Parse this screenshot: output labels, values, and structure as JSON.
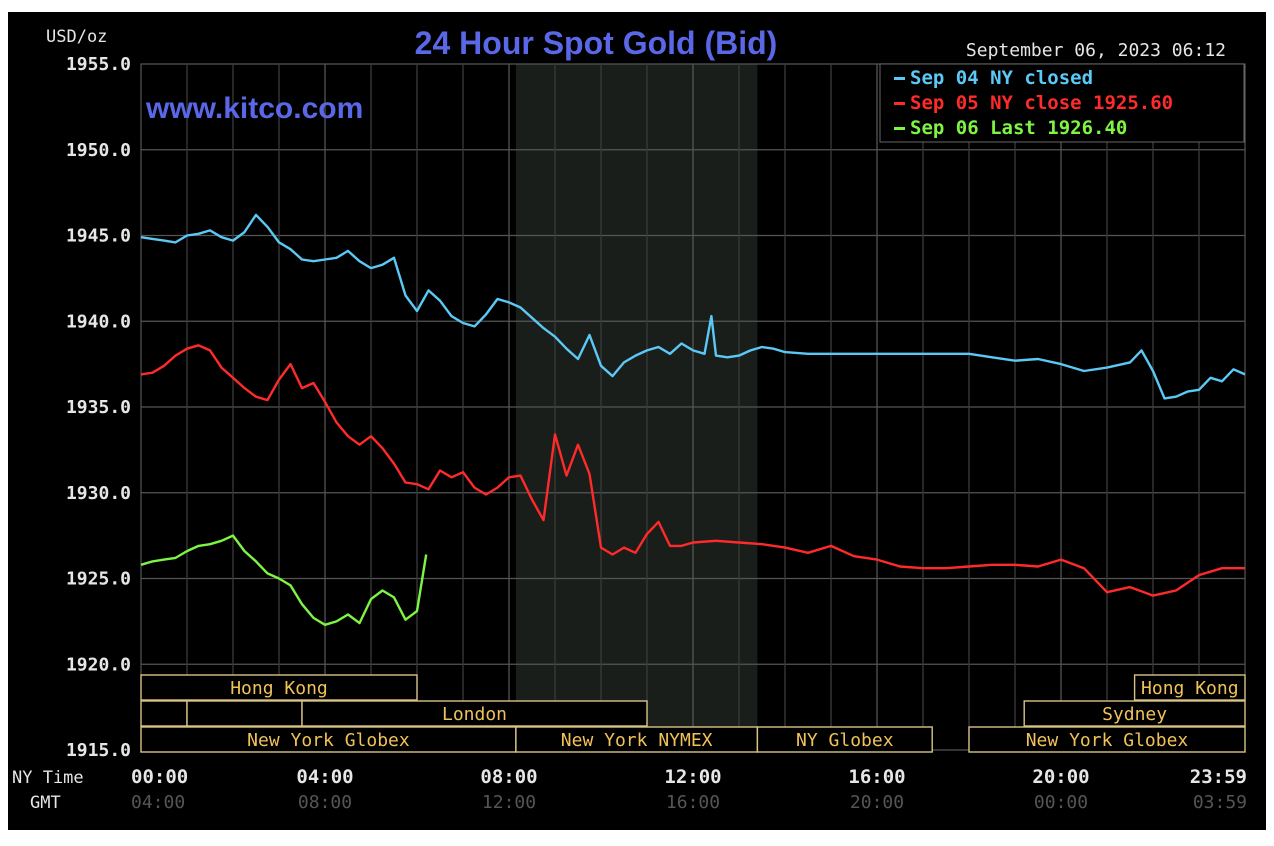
{
  "chart_data": {
    "type": "line",
    "title": "24 Hour Spot Gold (Bid)",
    "subtitle": "www.kitco.com",
    "unit_label": "USD/oz",
    "timestamp": "September 06, 2023 06:12",
    "ylim": [
      1915,
      1955
    ],
    "yticks": [
      1955,
      1950,
      1945,
      1940,
      1935,
      1930,
      1925,
      1920,
      1915
    ],
    "ytick_labels": [
      "1955.0",
      "1950.0",
      "1945.0",
      "1940.0",
      "1935.0",
      "1930.0",
      "1925.0",
      "1920.0",
      "1915.0"
    ],
    "xlim": [
      0,
      24
    ],
    "x_axis_ny_label": "NY Time",
    "x_axis_gmt_label": "GMT",
    "xticks": [
      0,
      4,
      8,
      12,
      16,
      20,
      24
    ],
    "xtick_labels_ny": [
      "00:00",
      "04:00",
      "08:00",
      "12:00",
      "16:00",
      "20:00",
      "23:59"
    ],
    "xtick_labels_gmt": [
      "04:00",
      "08:00",
      "12:00",
      "16:00",
      "20:00",
      "00:00",
      "03:59"
    ],
    "grid": true,
    "legend_position": "top-right",
    "shaded_region": [
      8.15,
      13.4
    ],
    "series": [
      {
        "name": "Sep 04 NY closed",
        "color": "#5bc8f5",
        "x": [
          0,
          0.25,
          0.5,
          0.75,
          1,
          1.25,
          1.5,
          1.75,
          2,
          2.25,
          2.5,
          2.75,
          3,
          3.25,
          3.5,
          3.75,
          4,
          4.25,
          4.5,
          4.75,
          5,
          5.25,
          5.5,
          5.75,
          6,
          6.25,
          6.5,
          6.75,
          7,
          7.25,
          7.5,
          7.75,
          8,
          8.25,
          8.5,
          8.75,
          9,
          9.25,
          9.5,
          9.75,
          10,
          10.25,
          10.5,
          10.75,
          11,
          11.25,
          11.5,
          11.75,
          12,
          12.25,
          12.4,
          12.5,
          12.75,
          13,
          13.25,
          13.5,
          13.75,
          14,
          14.5,
          15,
          16,
          17,
          18,
          18.5,
          19,
          19.5,
          20,
          20.5,
          21,
          21.5,
          21.75,
          22,
          22.25,
          22.5,
          22.75,
          23,
          23.25,
          23.5,
          23.75,
          24
        ],
        "values": [
          1944.9,
          1944.8,
          1944.7,
          1944.6,
          1945.0,
          1945.1,
          1945.3,
          1944.9,
          1944.7,
          1945.2,
          1946.2,
          1945.5,
          1944.6,
          1944.2,
          1943.6,
          1943.5,
          1943.6,
          1943.7,
          1944.1,
          1943.5,
          1943.1,
          1943.3,
          1943.7,
          1941.5,
          1940.6,
          1941.8,
          1941.2,
          1940.3,
          1939.9,
          1939.7,
          1940.4,
          1941.3,
          1941.1,
          1940.8,
          1940.2,
          1939.6,
          1939.1,
          1938.4,
          1937.8,
          1939.2,
          1937.4,
          1936.8,
          1937.6,
          1938.0,
          1938.3,
          1938.5,
          1938.1,
          1938.7,
          1938.3,
          1938.1,
          1940.3,
          1938.0,
          1937.9,
          1938.0,
          1938.3,
          1938.5,
          1938.4,
          1938.2,
          1938.1,
          1938.1,
          1938.1,
          1938.1,
          1938.1,
          1937.9,
          1937.7,
          1937.8,
          1937.5,
          1937.1,
          1937.3,
          1937.6,
          1938.3,
          1937.1,
          1935.5,
          1935.6,
          1935.9,
          1936.0,
          1936.7,
          1936.5,
          1937.2,
          1936.9
        ]
      },
      {
        "name": "Sep 05 NY close 1925.60",
        "color": "#ff2a2a",
        "x": [
          0,
          0.25,
          0.5,
          0.75,
          1,
          1.25,
          1.5,
          1.75,
          2,
          2.25,
          2.5,
          2.75,
          3,
          3.25,
          3.5,
          3.75,
          4,
          4.25,
          4.5,
          4.75,
          5,
          5.25,
          5.5,
          5.75,
          6,
          6.25,
          6.5,
          6.75,
          7,
          7.25,
          7.5,
          7.75,
          8,
          8.25,
          8.5,
          8.75,
          9,
          9.25,
          9.5,
          9.75,
          10,
          10.25,
          10.5,
          10.75,
          11,
          11.25,
          11.5,
          11.75,
          12,
          12.5,
          13,
          13.5,
          14,
          14.5,
          15,
          15.5,
          16,
          16.5,
          17,
          17.5,
          18,
          18.5,
          19,
          19.5,
          20,
          20.5,
          21,
          21.5,
          22,
          22.5,
          23,
          23.5,
          24
        ],
        "values": [
          1936.9,
          1937.0,
          1937.4,
          1938.0,
          1938.4,
          1938.6,
          1938.3,
          1937.3,
          1936.7,
          1936.1,
          1935.6,
          1935.4,
          1936.6,
          1937.5,
          1936.1,
          1936.4,
          1935.3,
          1934.1,
          1933.3,
          1932.8,
          1933.3,
          1932.6,
          1931.7,
          1930.6,
          1930.5,
          1930.2,
          1931.3,
          1930.9,
          1931.2,
          1930.3,
          1929.9,
          1930.3,
          1930.9,
          1931.0,
          1929.6,
          1928.4,
          1933.4,
          1931.0,
          1932.8,
          1931.1,
          1926.8,
          1926.4,
          1926.8,
          1926.5,
          1927.6,
          1928.3,
          1926.9,
          1926.9,
          1927.1,
          1927.2,
          1927.1,
          1927.0,
          1926.8,
          1926.5,
          1926.9,
          1926.3,
          1926.1,
          1925.7,
          1925.6,
          1925.6,
          1925.7,
          1925.8,
          1925.8,
          1925.7,
          1926.1,
          1925.6,
          1924.2,
          1924.5,
          1924.0,
          1924.3,
          1925.2,
          1925.6,
          1925.6
        ]
      },
      {
        "name": "Sep 06 Last 1926.40",
        "color": "#7ef542",
        "x": [
          0,
          0.25,
          0.5,
          0.75,
          1,
          1.25,
          1.5,
          1.75,
          2,
          2.25,
          2.5,
          2.75,
          3,
          3.25,
          3.5,
          3.75,
          4,
          4.25,
          4.5,
          4.75,
          5,
          5.25,
          5.5,
          5.75,
          6,
          6.2
        ],
        "values": [
          1925.8,
          1926.0,
          1926.1,
          1926.2,
          1926.6,
          1926.9,
          1927.0,
          1927.2,
          1927.5,
          1926.6,
          1926.0,
          1925.3,
          1925.0,
          1924.6,
          1923.5,
          1922.7,
          1922.3,
          1922.5,
          1922.9,
          1922.4,
          1923.8,
          1924.3,
          1923.9,
          1922.6,
          1923.1,
          1926.4
        ]
      }
    ],
    "sessions": [
      {
        "label": "Hong Kong",
        "start": 0,
        "end": 6.0,
        "row": 0
      },
      {
        "label": "",
        "start": 0,
        "end": 1.0,
        "row": 1
      },
      {
        "label": "",
        "start": 1.0,
        "end": 3.5,
        "row": 1
      },
      {
        "label": "London",
        "start": 3.5,
        "end": 11.0,
        "row": 1
      },
      {
        "label": "New York Globex",
        "start": 0,
        "end": 8.15,
        "row": 2
      },
      {
        "label": "New York NYMEX",
        "start": 8.15,
        "end": 13.4,
        "row": 2
      },
      {
        "label": "NY Globex",
        "start": 13.4,
        "end": 17.2,
        "row": 2
      },
      {
        "label": "Hong Kong",
        "start": 21.6,
        "end": 24,
        "row": 0
      },
      {
        "label": "Sydney",
        "start": 19.2,
        "end": 24,
        "row": 1
      },
      {
        "label": "New York Globex",
        "start": 18.0,
        "end": 24,
        "row": 2
      }
    ]
  }
}
